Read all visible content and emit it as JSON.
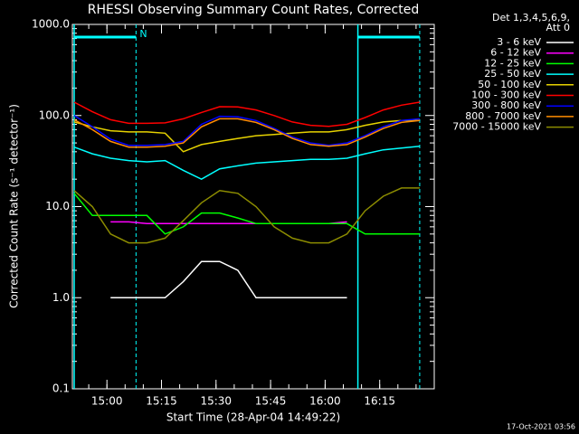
{
  "chart_data": {
    "type": "line",
    "title": "RHESSI Observing Summary Count Rates, Corrected",
    "legend_header": [
      "Det 1,3,4,5,6,9,",
      "Att 0"
    ],
    "x_label": "Start Time (28-Apr-04 14:49:22)",
    "y_label": "Corrected Count Rate (s⁻¹ detector⁻¹)",
    "footer": "17-Oct-2021 03:56",
    "log_y": true,
    "xlim": [
      "14:50:30",
      "16:30:00"
    ],
    "xticks": [
      "15:00",
      "15:15",
      "15:30",
      "15:45",
      "16:00",
      "16:15"
    ],
    "ylim": [
      0.1,
      1000
    ],
    "yticks": [
      0.1,
      {
        "value": 1,
        "label": "1.0"
      },
      {
        "value": 10,
        "label": "10.0"
      },
      {
        "value": 100,
        "label": "100.0"
      },
      {
        "value": 1000,
        "label": "1000.0"
      }
    ],
    "intervals": [
      {
        "start": "14:51",
        "end": "15:08",
        "label": "N",
        "color": "#00ffff"
      },
      {
        "start": "16:09",
        "end": "16:26",
        "color": "#00ffff"
      }
    ],
    "x": [
      "14:51",
      "14:56",
      "15:01",
      "15:06",
      "15:11",
      "15:16",
      "15:21",
      "15:26",
      "15:31",
      "15:36",
      "15:41",
      "15:46",
      "15:51",
      "15:56",
      "16:01",
      "16:06",
      "16:11",
      "16:16",
      "16:21",
      "16:26"
    ],
    "series": [
      {
        "name": "3 - 6 keV",
        "color": "#ffffff",
        "values": [
          null,
          null,
          1,
          1,
          1,
          1,
          1.5,
          2.5,
          2.5,
          2,
          1,
          1,
          1,
          1,
          1,
          1,
          null,
          null,
          null,
          null
        ]
      },
      {
        "name": "6 - 12 keV",
        "color": "#ff00ff",
        "values": [
          null,
          null,
          6.8,
          6.8,
          6.5,
          6.5,
          6.5,
          6.5,
          6.5,
          6.5,
          6.5,
          6.5,
          6.5,
          6.5,
          6.5,
          6.8,
          null,
          null,
          null,
          null
        ]
      },
      {
        "name": "12 - 25 keV",
        "color": "#00ff00",
        "values": [
          14,
          8,
          8,
          8,
          8,
          5,
          6,
          8.5,
          8.5,
          7.5,
          6.5,
          6.5,
          6.5,
          6.5,
          6.5,
          6.5,
          5,
          5,
          5,
          5
        ]
      },
      {
        "name": "25 - 50 keV",
        "color": "#00ffff",
        "values": [
          45,
          38,
          34,
          32,
          31,
          32,
          25,
          20,
          26,
          28,
          30,
          31,
          32,
          33,
          33,
          34,
          38,
          42,
          44,
          46
        ]
      },
      {
        "name": "50 - 100 keV",
        "color": "#e6d200",
        "values": [
          85,
          75,
          68,
          66,
          66,
          64,
          40,
          48,
          52,
          56,
          60,
          62,
          64,
          66,
          66,
          70,
          78,
          85,
          88,
          88
        ]
      },
      {
        "name": "100 - 300 keV",
        "color": "#ff0000",
        "values": [
          140,
          110,
          90,
          82,
          82,
          83,
          92,
          108,
          125,
          124,
          115,
          100,
          85,
          78,
          76,
          80,
          95,
          115,
          130,
          140
        ]
      },
      {
        "name": "300 - 800 keV",
        "color": "#0000ff",
        "values": [
          100,
          75,
          55,
          47,
          47,
          48,
          52,
          80,
          98,
          97,
          88,
          72,
          58,
          50,
          47,
          50,
          60,
          75,
          88,
          92
        ]
      },
      {
        "name": "800 - 7000 keV",
        "color": "#ff8c00",
        "values": [
          90,
          70,
          52,
          45,
          45,
          46,
          50,
          75,
          92,
          92,
          84,
          70,
          56,
          48,
          46,
          48,
          58,
          72,
          84,
          88
        ]
      },
      {
        "name": "7000 - 15000 keV",
        "color": "#8c8c00",
        "values": [
          15,
          10,
          5,
          4,
          4,
          4.5,
          7,
          11,
          15,
          14,
          10,
          6,
          4.5,
          4,
          4,
          5,
          9,
          13,
          16,
          16
        ]
      }
    ]
  }
}
